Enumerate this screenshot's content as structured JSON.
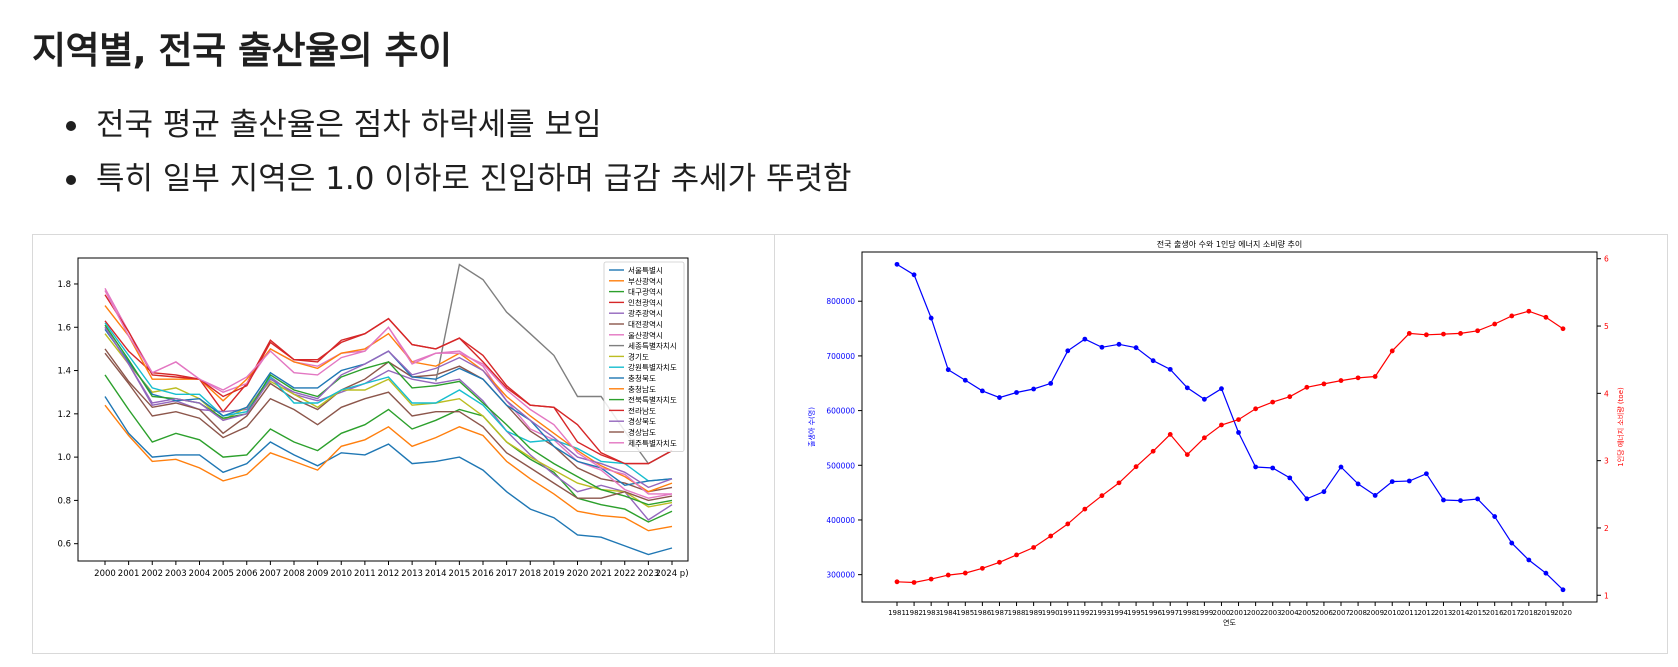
{
  "page": {
    "title": "지역별, 전국 출산율의 추이",
    "bullets": [
      "전국 평균 출산율은 점차 하락세를 보임",
      "특히 일부 지역은 1.0 이하로 진입하며 급감 추세가 뚜렷함"
    ]
  },
  "chart_data": [
    {
      "type": "line",
      "title": "",
      "xlabel": "",
      "ylabel": "",
      "ylim": [
        0.52,
        1.92
      ],
      "yticks": [
        0.6,
        0.8,
        1.0,
        1.2,
        1.4,
        1.6,
        1.8
      ],
      "categories": [
        "2000",
        "2001",
        "2002",
        "2003",
        "2004",
        "2005",
        "2006",
        "2007",
        "2008",
        "2009",
        "2010",
        "2011",
        "2012",
        "2013",
        "2014",
        "2015",
        "2016",
        "2017",
        "2018",
        "2019",
        "2020",
        "2021",
        "2022",
        "2023",
        "2024 p)"
      ],
      "grid": false,
      "legend_position": "top-right",
      "series": [
        {
          "name": "서울특별시",
          "color": "#1f77b4",
          "values": [
            1.28,
            1.11,
            1.0,
            1.01,
            1.01,
            0.93,
            0.97,
            1.07,
            1.01,
            0.96,
            1.02,
            1.01,
            1.06,
            0.97,
            0.98,
            1.0,
            0.94,
            0.84,
            0.76,
            0.72,
            0.64,
            0.63,
            0.59,
            0.55,
            0.58
          ]
        },
        {
          "name": "부산광역시",
          "color": "#ff7f0e",
          "values": [
            1.24,
            1.1,
            0.98,
            0.99,
            0.95,
            0.89,
            0.92,
            1.02,
            0.98,
            0.94,
            1.05,
            1.08,
            1.14,
            1.05,
            1.09,
            1.14,
            1.1,
            0.98,
            0.9,
            0.83,
            0.75,
            0.73,
            0.72,
            0.66,
            0.68
          ]
        },
        {
          "name": "대구광역시",
          "color": "#2ca02c",
          "values": [
            1.38,
            1.22,
            1.07,
            1.11,
            1.08,
            1.0,
            1.01,
            1.13,
            1.07,
            1.03,
            1.11,
            1.15,
            1.22,
            1.13,
            1.17,
            1.22,
            1.19,
            1.07,
            0.99,
            0.93,
            0.81,
            0.78,
            0.76,
            0.7,
            0.75
          ]
        },
        {
          "name": "인천광역시",
          "color": "#d62728",
          "values": [
            1.63,
            1.49,
            1.39,
            1.38,
            1.36,
            1.21,
            1.34,
            1.54,
            1.45,
            1.45,
            1.53,
            1.57,
            1.64,
            1.52,
            1.5,
            1.55,
            1.44,
            1.32,
            1.24,
            1.23,
            1.07,
            1.01,
            0.97,
            0.97,
            1.03
          ]
        },
        {
          "name": "광주광역시",
          "color": "#9467bd",
          "values": [
            1.6,
            1.43,
            1.24,
            1.26,
            1.22,
            1.21,
            1.22,
            1.37,
            1.29,
            1.26,
            1.3,
            1.34,
            1.4,
            1.36,
            1.34,
            1.36,
            1.26,
            1.12,
            1.01,
            0.92,
            0.84,
            0.87,
            0.84,
            0.71,
            0.78
          ]
        },
        {
          "name": "대전광역시",
          "color": "#8c564b",
          "values": [
            1.5,
            1.35,
            1.23,
            1.25,
            1.22,
            1.11,
            1.19,
            1.34,
            1.27,
            1.22,
            1.31,
            1.36,
            1.44,
            1.37,
            1.38,
            1.42,
            1.36,
            1.24,
            1.12,
            1.05,
            0.95,
            0.9,
            0.88,
            0.84,
            0.86
          ]
        },
        {
          "name": "울산광역시",
          "color": "#e377c2",
          "values": [
            1.78,
            1.58,
            1.39,
            1.44,
            1.36,
            1.3,
            1.34,
            1.5,
            1.44,
            1.42,
            1.48,
            1.49,
            1.6,
            1.44,
            1.48,
            1.49,
            1.42,
            1.26,
            1.13,
            1.08,
            0.98,
            0.94,
            0.85,
            0.81,
            0.83
          ]
        },
        {
          "name": "세종특별자치시",
          "color": "#7f7f7f",
          "values": [
            null,
            null,
            null,
            null,
            null,
            null,
            null,
            null,
            null,
            null,
            null,
            null,
            null,
            null,
            1.35,
            1.89,
            1.82,
            1.67,
            1.57,
            1.47,
            1.28,
            1.28,
            1.12,
            0.97,
            1.03
          ]
        },
        {
          "name": "경기도",
          "color": "#bcbd22",
          "values": [
            1.57,
            1.43,
            1.3,
            1.32,
            1.27,
            1.17,
            1.23,
            1.35,
            1.29,
            1.23,
            1.31,
            1.31,
            1.36,
            1.24,
            1.25,
            1.27,
            1.19,
            1.07,
            1.0,
            0.94,
            0.88,
            0.85,
            0.84,
            0.77,
            0.79
          ]
        },
        {
          "name": "강원특별자치도",
          "color": "#17becf",
          "values": [
            1.62,
            1.47,
            1.32,
            1.29,
            1.29,
            1.19,
            1.21,
            1.37,
            1.25,
            1.25,
            1.31,
            1.34,
            1.37,
            1.25,
            1.25,
            1.31,
            1.24,
            1.12,
            1.07,
            1.08,
            1.04,
            0.98,
            0.97,
            0.89,
            0.9
          ]
        },
        {
          "name": "충청북도",
          "color": "#1f77b4",
          "values": [
            1.59,
            1.44,
            1.29,
            1.26,
            1.27,
            1.19,
            1.23,
            1.39,
            1.32,
            1.32,
            1.4,
            1.43,
            1.49,
            1.37,
            1.36,
            1.41,
            1.36,
            1.24,
            1.17,
            1.05,
            0.98,
            0.95,
            0.87,
            0.89,
            0.9
          ]
        },
        {
          "name": "충청남도",
          "color": "#ff7f0e",
          "values": [
            1.7,
            1.56,
            1.36,
            1.36,
            1.36,
            1.26,
            1.36,
            1.5,
            1.44,
            1.41,
            1.48,
            1.5,
            1.57,
            1.44,
            1.42,
            1.48,
            1.4,
            1.28,
            1.19,
            1.11,
            1.03,
            0.96,
            0.91,
            0.84,
            0.88
          ]
        },
        {
          "name": "전북특별자치도",
          "color": "#2ca02c",
          "values": [
            1.61,
            1.45,
            1.28,
            1.27,
            1.25,
            1.18,
            1.2,
            1.38,
            1.31,
            1.28,
            1.37,
            1.41,
            1.44,
            1.32,
            1.33,
            1.35,
            1.25,
            1.15,
            1.04,
            0.97,
            0.91,
            0.85,
            0.82,
            0.78,
            0.8
          ]
        },
        {
          "name": "전라남도",
          "color": "#d62728",
          "values": [
            1.75,
            1.58,
            1.38,
            1.37,
            1.36,
            1.28,
            1.33,
            1.53,
            1.45,
            1.44,
            1.54,
            1.57,
            1.64,
            1.52,
            1.5,
            1.55,
            1.47,
            1.33,
            1.24,
            1.23,
            1.15,
            1.02,
            0.97,
            0.97,
            1.03
          ]
        },
        {
          "name": "경상북도",
          "color": "#9467bd",
          "values": [
            1.6,
            1.43,
            1.25,
            1.27,
            1.25,
            1.17,
            1.2,
            1.36,
            1.3,
            1.27,
            1.38,
            1.43,
            1.49,
            1.38,
            1.41,
            1.46,
            1.4,
            1.26,
            1.17,
            1.09,
            1.0,
            0.97,
            0.93,
            0.86,
            0.9
          ]
        },
        {
          "name": "경상남도",
          "color": "#8c564b",
          "values": [
            1.48,
            1.34,
            1.19,
            1.21,
            1.18,
            1.09,
            1.14,
            1.27,
            1.22,
            1.15,
            1.23,
            1.27,
            1.3,
            1.19,
            1.21,
            1.21,
            1.14,
            1.02,
            0.95,
            0.88,
            0.81,
            0.81,
            0.84,
            0.8,
            0.82
          ]
        },
        {
          "name": "제주특별자치도",
          "color": "#e377c2",
          "values": [
            1.77,
            1.56,
            1.39,
            1.44,
            1.36,
            1.31,
            1.37,
            1.49,
            1.39,
            1.38,
            1.46,
            1.49,
            1.6,
            1.43,
            1.48,
            1.48,
            1.43,
            1.31,
            1.22,
            1.15,
            1.02,
            0.95,
            0.92,
            0.83,
            0.83
          ]
        }
      ]
    },
    {
      "type": "line",
      "title": "전국 출생아 수와 1인당 에너지 소비량 추이",
      "xlabel": "연도",
      "ylabel": "출생아 수(명)",
      "y2label": "1인당 에너지 소비량 (toe)",
      "ylim": [
        250000,
        890000
      ],
      "yticks": [
        300000,
        400000,
        500000,
        600000,
        700000,
        800000
      ],
      "y2lim": [
        0.9,
        6.1
      ],
      "y2ticks": [
        1,
        2,
        3,
        4,
        5,
        6
      ],
      "grid": false,
      "x": [
        "1981",
        "1982",
        "1983",
        "1984",
        "1985",
        "1986",
        "1987",
        "1988",
        "1989",
        "1990",
        "1991",
        "1992",
        "1993",
        "1994",
        "1995",
        "1996",
        "1997",
        "1998",
        "1999",
        "2000",
        "2001",
        "2002",
        "2003",
        "2004",
        "2005",
        "2006",
        "2007",
        "2008",
        "2009",
        "2010",
        "2011",
        "2012",
        "2013",
        "2014",
        "2015",
        "2016",
        "2017",
        "2018",
        "2019",
        "2020"
      ],
      "series": [
        {
          "name": "출생아 수",
          "axis": "left",
          "color": "#0000ff",
          "values": [
            867409,
            848312,
            769155,
            674793,
            655489,
            636019,
            623831,
            633092,
            639431,
            649738,
            709275,
            730678,
            715826,
            721185,
            715020,
            691226,
            675394,
            641594,
            620668,
            640089,
            559934,
            496911,
            495036,
            476958,
            438707,
            451759,
            496822,
            465892,
            444849,
            470171,
            471265,
            484550,
            436455,
            435435,
            438420,
            406243,
            357771,
            326822,
            302676,
            272337
          ]
        },
        {
          "name": "1인당 에너지 소비량",
          "axis": "right",
          "color": "#ff0000",
          "values": [
            1.2,
            1.19,
            1.24,
            1.3,
            1.33,
            1.4,
            1.49,
            1.6,
            1.71,
            1.88,
            2.06,
            2.28,
            2.48,
            2.67,
            2.91,
            3.14,
            3.39,
            3.09,
            3.34,
            3.53,
            3.61,
            3.77,
            3.87,
            3.95,
            4.09,
            4.14,
            4.19,
            4.23,
            4.25,
            4.63,
            4.89,
            4.87,
            4.88,
            4.89,
            4.93,
            5.03,
            5.15,
            5.22,
            5.13,
            4.96
          ]
        }
      ]
    }
  ]
}
